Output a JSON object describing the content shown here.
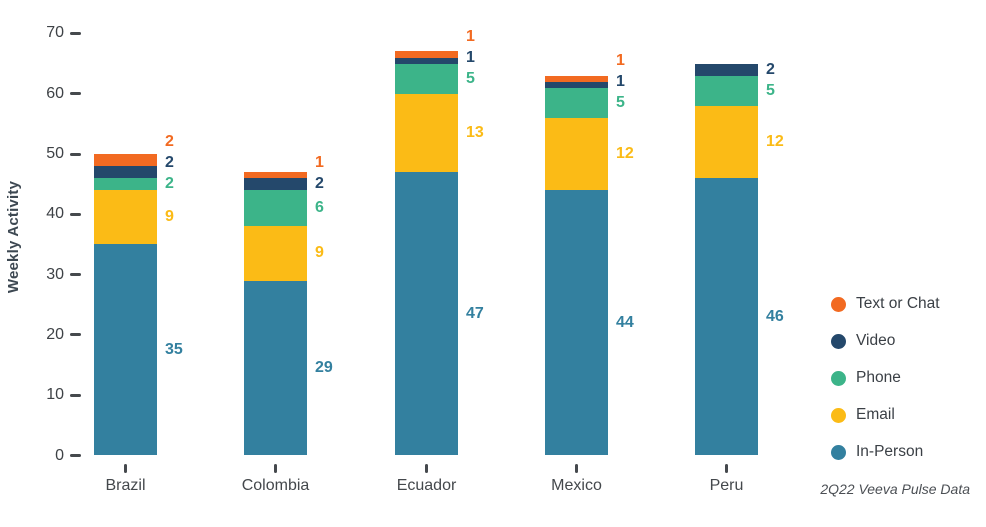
{
  "chart_data": {
    "type": "bar",
    "stacked": true,
    "title": "",
    "ylabel": "Weekly Activity",
    "xlabel": "",
    "categories": [
      "Brazil",
      "Colombia",
      "Ecuador",
      "Mexico",
      "Peru"
    ],
    "series": [
      {
        "name": "In-Person",
        "color": "#33809F",
        "values": [
          35,
          29,
          47,
          44,
          46
        ]
      },
      {
        "name": "Email",
        "color": "#FBBB16",
        "values": [
          9,
          9,
          13,
          12,
          12
        ]
      },
      {
        "name": "Phone",
        "color": "#3CB489",
        "values": [
          2,
          6,
          5,
          5,
          5
        ]
      },
      {
        "name": "Video",
        "color": "#24486B",
        "values": [
          2,
          2,
          1,
          1,
          2
        ]
      },
      {
        "name": "Text or Chat",
        "color": "#F26A21",
        "values": [
          2,
          1,
          1,
          1,
          0
        ]
      }
    ],
    "ylim": [
      0,
      70
    ],
    "ytick_step": 10,
    "yticks": [
      0,
      10,
      20,
      30,
      40,
      50,
      60,
      70
    ],
    "grid": false,
    "value_labels": true,
    "legend_position": "right",
    "legend_items_top_to_bottom": [
      "Text or Chat",
      "Video",
      "Phone",
      "Email",
      "In-Person"
    ],
    "footnote": "2Q22 Veeva Pulse Data"
  }
}
